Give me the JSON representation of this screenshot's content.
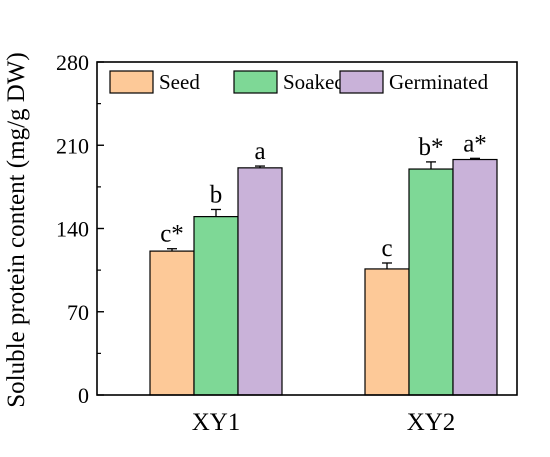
{
  "chart_data": {
    "type": "bar",
    "title": "",
    "xlabel": "",
    "ylabel": "Soluble protein content (mg/g DW)",
    "ylim": [
      0,
      280
    ],
    "yticks": [
      0,
      70,
      140,
      210,
      280
    ],
    "categories": [
      "XY1",
      "XY2"
    ],
    "legend_position": "top",
    "grid": false,
    "series": [
      {
        "name": "Seed",
        "color": "#FDC998",
        "values": [
          121,
          106
        ],
        "errors": [
          2,
          5
        ],
        "labels": [
          "c*",
          "c"
        ]
      },
      {
        "name": "Soaked",
        "color": "#7ED896",
        "values": [
          150,
          190
        ],
        "errors": [
          6,
          6
        ],
        "labels": [
          "b",
          "b*"
        ]
      },
      {
        "name": "Germinated",
        "color": "#C9B2D9",
        "values": [
          191,
          198
        ],
        "errors": [
          1.5,
          1
        ],
        "labels": [
          "a",
          "a*"
        ]
      }
    ]
  }
}
